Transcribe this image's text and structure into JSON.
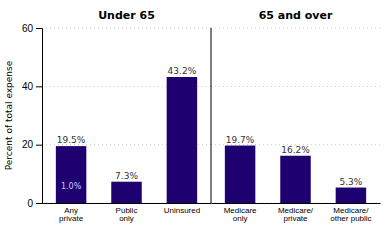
{
  "chart_data": [
    {
      "type": "bar",
      "title": "Under 65",
      "y_label": "Percent of total expense",
      "categories": [
        "Any\nprivate",
        "Public\nonly",
        "Uninsured"
      ],
      "values": [
        19.5,
        7.3,
        43.2
      ],
      "value_labels": [
        "19.5%",
        "7.3%",
        "43.2%"
      ],
      "data_labels": true,
      "annotations": [
        {
          "text": "1.0%",
          "category": "Any\nprivate"
        }
      ],
      "color": "#1E0070",
      "ylim": [
        0,
        60
      ],
      "yticks": [
        0,
        20,
        40,
        60
      ],
      "grid": true
    },
    {
      "type": "bar",
      "title": "65 and over",
      "categories": [
        "Medicare\nonly",
        "Medicare/\nprivate",
        "Medicare/\nother public"
      ],
      "values": [
        19.7,
        16.2,
        5.3
      ],
      "value_labels": [
        "19.7%",
        "16.2%",
        "5.3%"
      ],
      "data_labels": true,
      "color": "#1E0070",
      "ylim": [
        0,
        60
      ],
      "yticks": [
        0,
        20,
        40,
        60
      ],
      "grid": true,
      "tick_labels": "x"
    }
  ]
}
